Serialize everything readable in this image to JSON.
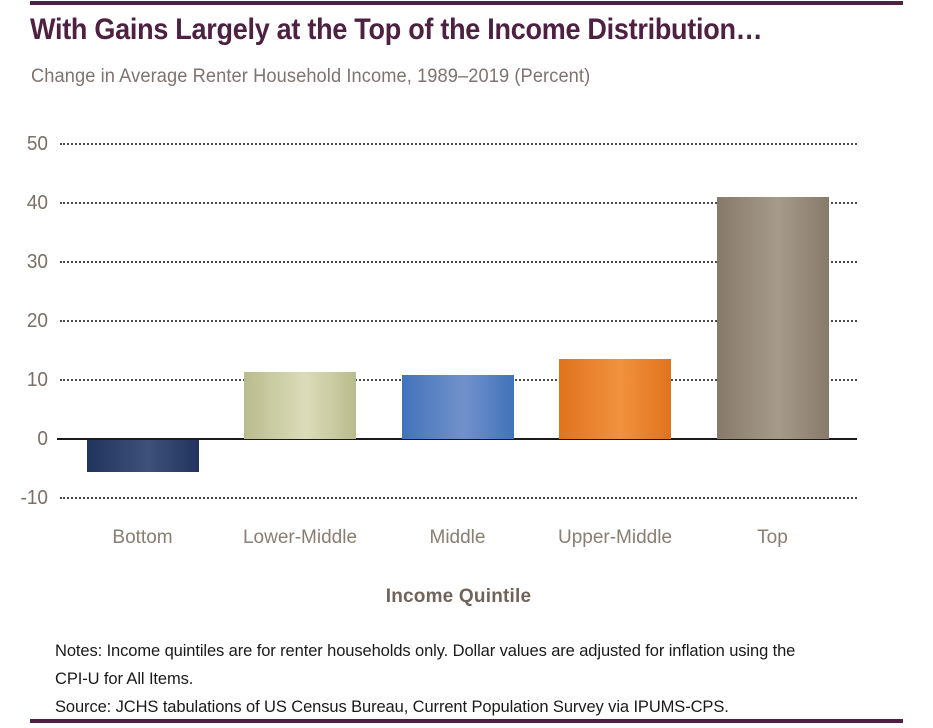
{
  "page": {
    "title": "With Gains Largely at the Top of the Income Distribution…",
    "subtitle": "Change in Average Renter Household Income, 1989–2019 (Percent)",
    "x_axis_title": "Income Quintile",
    "notes_line1": "Notes: Income quintiles are for renter households only. Dollar values are adjusted for inflation using the",
    "notes_line2": "CPI-U for All Items.",
    "source": "Source: JCHS tabulations of US Census Bureau, Current Population Survey via IPUMS-CPS.",
    "accent_maroon": "#4E2142"
  },
  "chart_data": {
    "type": "bar",
    "title": "With Gains Largely at the Top of the Income Distribution…",
    "subtitle": "Change in Average Renter Household Income, 1989–2019 (Percent)",
    "categories": [
      "Bottom",
      "Lower-Middle",
      "Middle",
      "Upper-Middle",
      "Top"
    ],
    "values": [
      -5.5,
      11.3,
      10.9,
      13.6,
      41
    ],
    "xlabel": "Income Quintile",
    "ylabel": "",
    "ylim": [
      -10,
      50
    ],
    "yticks": [
      50,
      40,
      30,
      20,
      10,
      0,
      -10
    ],
    "grid": "dotted horizontal, no gridline at 0 (solid black zero axis)",
    "legend": "none",
    "bar_colors": [
      {
        "name": "navy",
        "edge": "#20345E",
        "mid": "#3E5179"
      },
      {
        "name": "olive",
        "edge": "#B9BC8C",
        "mid": "#DBDCBA"
      },
      {
        "name": "blue",
        "edge": "#4273BA",
        "mid": "#7291CB"
      },
      {
        "name": "orange",
        "edge": "#E0731D",
        "mid": "#F1913F"
      },
      {
        "name": "taupe",
        "edge": "#877A6A",
        "mid": "#A69A89"
      }
    ]
  }
}
